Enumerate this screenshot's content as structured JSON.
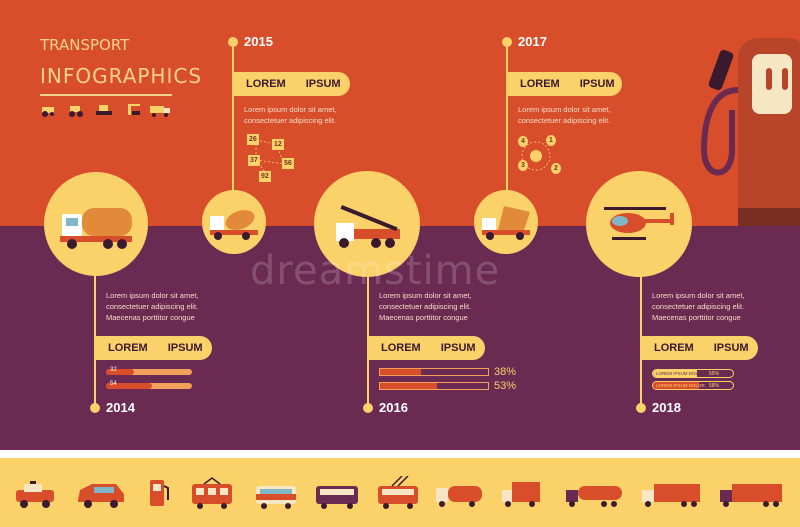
{
  "header": {
    "title_line1": "TRANSPORT",
    "title_line2": "INFOGRAPHICS"
  },
  "header_icons": [
    "tractor-icon",
    "roller-icon",
    "bulldozer-icon",
    "crane-icon",
    "truck-icon"
  ],
  "milestones": [
    {
      "year": "2014",
      "label_a": "LOREM",
      "label_b": "IPSUM",
      "text": [
        "Lorem ipsum dolor sit amet,",
        "consectetuer adipiscing elit.",
        "Maecenas porttitor congue"
      ],
      "icon": "tanker-truck-icon"
    },
    {
      "year": "2015",
      "label_a": "LOREM",
      "label_b": "IPSUM",
      "text": [
        "Lorem ipsum dolor sit amet,",
        "consectetuer adipiscing elit."
      ],
      "icon": "concrete-mixer-icon"
    },
    {
      "year": "2016",
      "label_a": "LOREM",
      "label_b": "IPSUM",
      "text": [
        "Lorem ipsum dolor sit amet,",
        "consectetuer adipiscing elit.",
        "Maecenas porttitor congue"
      ],
      "icon": "crane-truck-icon"
    },
    {
      "year": "2017",
      "label_a": "LOREM",
      "label_b": "IPSUM",
      "text": [
        "Lorem ipsum dolor sit amet,",
        "consectetuer adipiscing elit."
      ],
      "icon": "dump-truck-icon"
    },
    {
      "year": "2018",
      "label_a": "LOREM",
      "label_b": "IPSUM",
      "text": [
        "Lorem ipsum dolor sit amet,",
        "consectetuer adipiscing elit.",
        "Maecenas porttitor congue"
      ],
      "icon": "helicopter-icon"
    }
  ],
  "stats_2015": [
    "26",
    "12",
    "37",
    "56",
    "92"
  ],
  "stats_2017": [
    "1",
    "2",
    "3",
    "4"
  ],
  "bars_2014": [
    {
      "label": "32",
      "value": 0.32
    },
    {
      "label": "54",
      "value": 0.54
    }
  ],
  "bars_2016": [
    {
      "label": "38%",
      "value": 0.38
    },
    {
      "label": "53%",
      "value": 0.53
    }
  ],
  "bars_2018": [
    {
      "caption": "LOREM IPSUM DOLOR",
      "label": "55%",
      "value": 0.55
    },
    {
      "caption": "LOREM IPSUM DOLOR",
      "label": "58%",
      "value": 0.58
    }
  ],
  "watermark": "dreamstime",
  "bottom_icons": [
    "police-car-icon",
    "hatchback-car-icon",
    "fuel-pump-icon",
    "tram-icon",
    "bus-icon",
    "coach-bus-icon",
    "trolleybus-icon",
    "tanker-truck-icon",
    "box-truck-icon",
    "fuel-tanker-icon",
    "semi-truck-icon",
    "long-truck-icon"
  ],
  "colors": {
    "top": "#d84e2a",
    "bottom": "#6b2a51",
    "accent": "#fbd16a",
    "title": "#f7d38a"
  }
}
